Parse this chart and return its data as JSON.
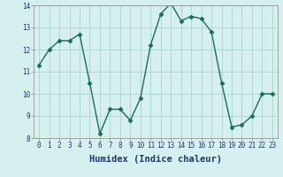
{
  "xlabel": "Humidex (Indice chaleur)",
  "x": [
    0,
    1,
    2,
    3,
    4,
    5,
    6,
    7,
    8,
    9,
    10,
    11,
    12,
    13,
    14,
    15,
    16,
    17,
    18,
    19,
    20,
    21,
    22,
    23
  ],
  "y": [
    11.3,
    12.0,
    12.4,
    12.4,
    12.7,
    10.5,
    8.2,
    9.3,
    9.3,
    8.8,
    9.8,
    12.2,
    13.6,
    14.1,
    13.3,
    13.5,
    13.4,
    12.8,
    10.5,
    8.5,
    8.6,
    9.0,
    10.0,
    10.0
  ],
  "line_color": "#1a6b5a",
  "marker": "D",
  "marker_size": 2.5,
  "bg_color": "#d6f0ef",
  "grid_color": "#b0d8d4",
  "ylim": [
    8,
    14
  ],
  "xlim": [
    -0.5,
    23.5
  ],
  "yticks": [
    8,
    9,
    10,
    11,
    12,
    13,
    14
  ],
  "xticks": [
    0,
    1,
    2,
    3,
    4,
    5,
    6,
    7,
    8,
    9,
    10,
    11,
    12,
    13,
    14,
    15,
    16,
    17,
    18,
    19,
    20,
    21,
    22,
    23
  ],
  "tick_fontsize": 5.5,
  "xlabel_fontsize": 7.5,
  "xlabel_color": "#1a3a6b",
  "line_width": 1.0
}
